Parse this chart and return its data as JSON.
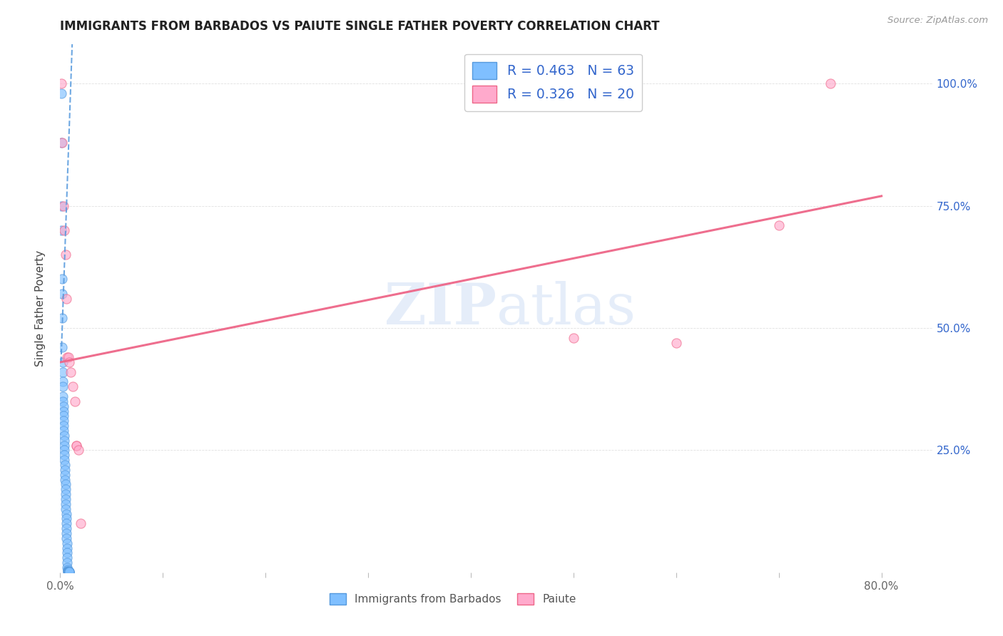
{
  "title": "IMMIGRANTS FROM BARBADOS VS PAIUTE SINGLE FATHER POVERTY CORRELATION CHART",
  "source": "Source: ZipAtlas.com",
  "ylabel": "Single Father Poverty",
  "blue_color": "#7fbfff",
  "blue_edge_color": "#5599dd",
  "pink_color": "#ffaacc",
  "pink_edge_color": "#ee6688",
  "blue_line_color": "#5599dd",
  "pink_line_color": "#ee6688",
  "legend_color_rn": "#3366cc",
  "watermark_color": "#ccddf5",
  "blue_dots": [
    [
      0.0008,
      0.98
    ],
    [
      0.0012,
      0.88
    ],
    [
      0.001,
      0.7
    ],
    [
      0.0012,
      0.75
    ],
    [
      0.0015,
      0.6
    ],
    [
      0.0015,
      0.57
    ],
    [
      0.0018,
      0.52
    ],
    [
      0.002,
      0.46
    ],
    [
      0.0022,
      0.43
    ],
    [
      0.0022,
      0.41
    ],
    [
      0.0025,
      0.39
    ],
    [
      0.0025,
      0.38
    ],
    [
      0.0028,
      0.36
    ],
    [
      0.0028,
      0.35
    ],
    [
      0.003,
      0.34
    ],
    [
      0.003,
      0.33
    ],
    [
      0.0032,
      0.32
    ],
    [
      0.0032,
      0.31
    ],
    [
      0.0035,
      0.3
    ],
    [
      0.0035,
      0.29
    ],
    [
      0.0038,
      0.28
    ],
    [
      0.0038,
      0.27
    ],
    [
      0.004,
      0.26
    ],
    [
      0.004,
      0.25
    ],
    [
      0.0042,
      0.24
    ],
    [
      0.0042,
      0.23
    ],
    [
      0.0045,
      0.22
    ],
    [
      0.0045,
      0.21
    ],
    [
      0.0048,
      0.2
    ],
    [
      0.0048,
      0.19
    ],
    [
      0.005,
      0.18
    ],
    [
      0.005,
      0.17
    ],
    [
      0.0052,
      0.16
    ],
    [
      0.0052,
      0.15
    ],
    [
      0.0055,
      0.14
    ],
    [
      0.0055,
      0.13
    ],
    [
      0.0058,
      0.12
    ],
    [
      0.0058,
      0.11
    ],
    [
      0.006,
      0.1
    ],
    [
      0.006,
      0.09
    ],
    [
      0.0062,
      0.08
    ],
    [
      0.0062,
      0.07
    ],
    [
      0.0065,
      0.06
    ],
    [
      0.0065,
      0.05
    ],
    [
      0.0068,
      0.04
    ],
    [
      0.0068,
      0.03
    ],
    [
      0.007,
      0.02
    ],
    [
      0.007,
      0.01
    ],
    [
      0.0072,
      0.005
    ],
    [
      0.0072,
      0.003
    ],
    [
      0.0075,
      0.002
    ],
    [
      0.0075,
      0.001
    ],
    [
      0.0078,
      0.001
    ],
    [
      0.0078,
      0.001
    ],
    [
      0.008,
      0.001
    ],
    [
      0.008,
      0.001
    ],
    [
      0.0082,
      0.001
    ],
    [
      0.0082,
      0.001
    ],
    [
      0.0085,
      0.001
    ],
    [
      0.0085,
      0.001
    ],
    [
      0.0088,
      0.001
    ],
    [
      0.0088,
      0.001
    ],
    [
      0.009,
      0.001
    ]
  ],
  "pink_dots": [
    [
      0.0008,
      1.0
    ],
    [
      0.002,
      0.88
    ],
    [
      0.003,
      0.75
    ],
    [
      0.004,
      0.7
    ],
    [
      0.005,
      0.65
    ],
    [
      0.006,
      0.56
    ],
    [
      0.007,
      0.44
    ],
    [
      0.008,
      0.44
    ],
    [
      0.009,
      0.43
    ],
    [
      0.01,
      0.41
    ],
    [
      0.012,
      0.38
    ],
    [
      0.014,
      0.35
    ],
    [
      0.016,
      0.26
    ],
    [
      0.016,
      0.26
    ],
    [
      0.018,
      0.25
    ],
    [
      0.02,
      0.1
    ],
    [
      0.5,
      0.48
    ],
    [
      0.6,
      0.47
    ],
    [
      0.7,
      0.71
    ],
    [
      0.75,
      1.0
    ]
  ],
  "blue_trend_x": [
    0.0008,
    0.012
  ],
  "blue_trend_y": [
    0.43,
    1.1
  ],
  "pink_trend_x": [
    0.0,
    0.8
  ],
  "pink_trend_y": [
    0.43,
    0.77
  ],
  "xlim": [
    0.0,
    0.85
  ],
  "ylim": [
    0.0,
    1.08
  ],
  "xticks": [
    0.0,
    0.1,
    0.2,
    0.3,
    0.4,
    0.5,
    0.6,
    0.7,
    0.8
  ],
  "xtick_labels": [
    "0.0%",
    "",
    "",
    "",
    "",
    "",
    "",
    "",
    "80.0%"
  ],
  "yticks": [
    0.0,
    0.25,
    0.5,
    0.75,
    1.0
  ],
  "ytick_labels": [
    "",
    "25.0%",
    "50.0%",
    "75.0%",
    "100.0%"
  ]
}
